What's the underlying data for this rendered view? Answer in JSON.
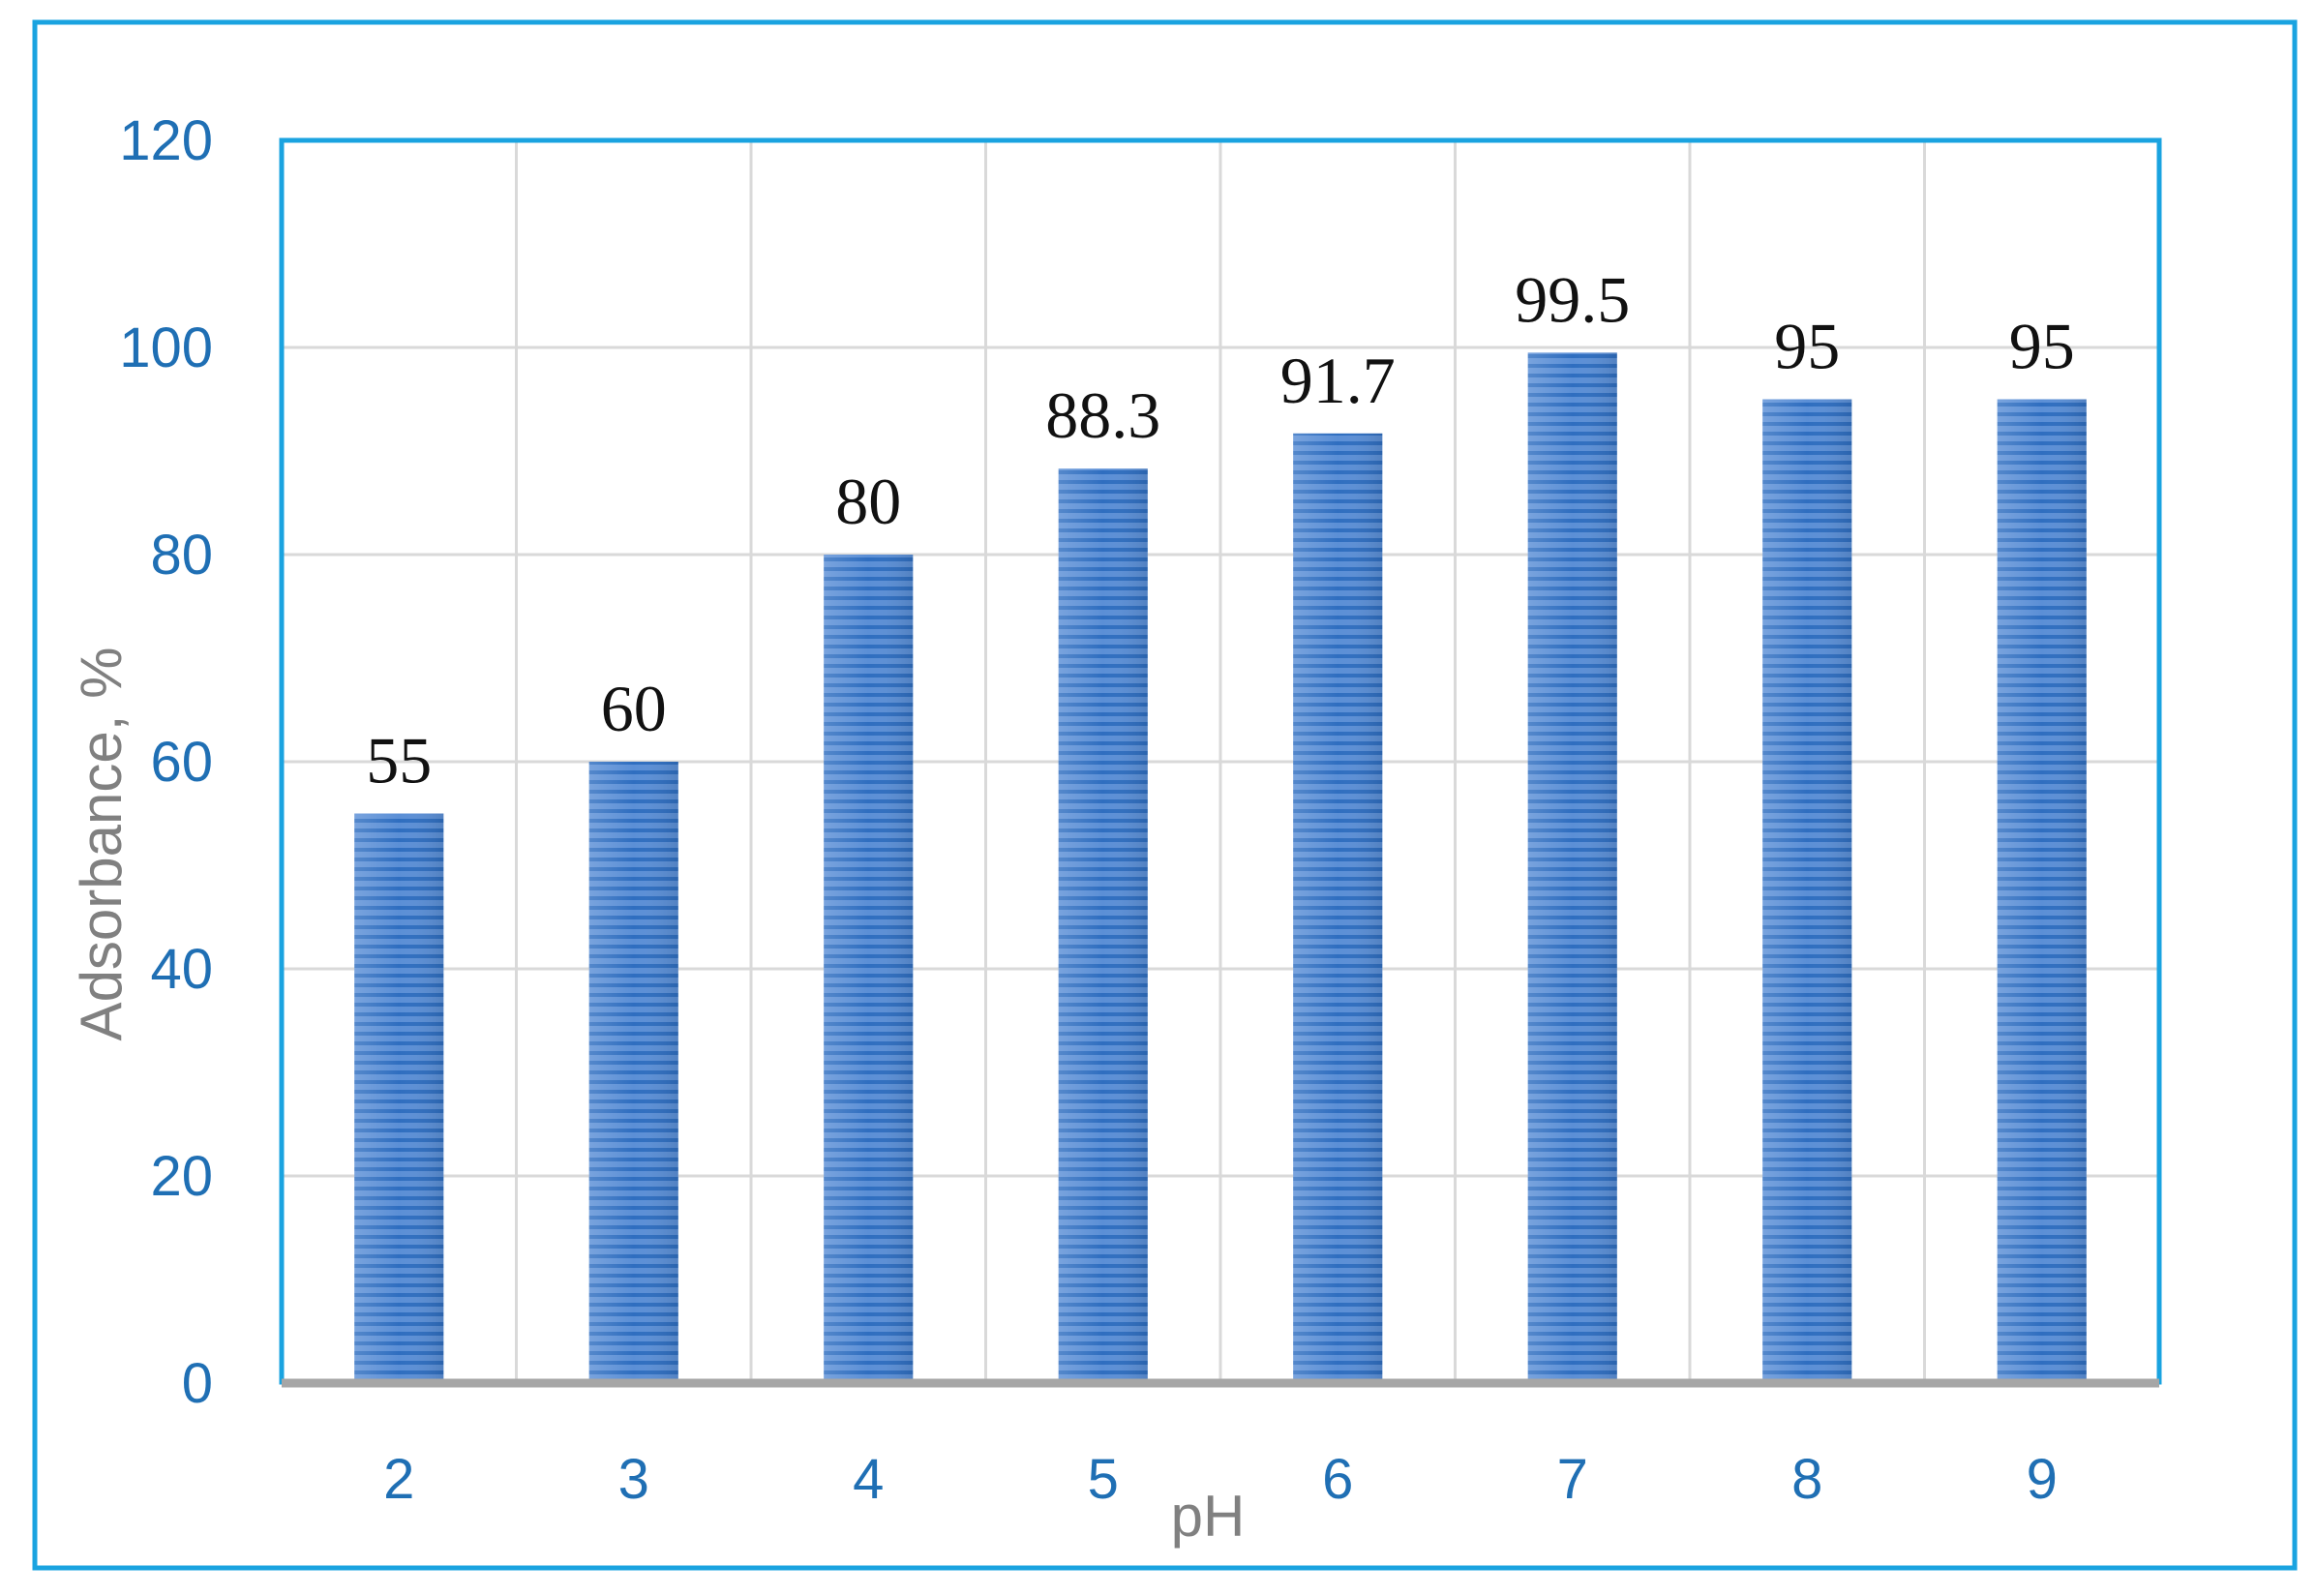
{
  "chart_data": {
    "type": "bar",
    "categories": [
      "2",
      "3",
      "4",
      "5",
      "6",
      "7",
      "8",
      "9"
    ],
    "values": [
      55,
      60,
      80,
      88.3,
      91.7,
      99.5,
      95,
      95
    ],
    "data_labels": [
      "55",
      "60",
      "80",
      "88.3",
      "91.7",
      "99.5",
      "95",
      "95"
    ],
    "xlabel": "pH",
    "ylabel": "Adsorbance, %",
    "ylim": [
      0,
      120
    ],
    "yticks": [
      0,
      20,
      40,
      60,
      80,
      100,
      120
    ],
    "grid": true,
    "legend": "none",
    "colors": {
      "bar_fill": "#5b8fd6",
      "bar_stripe": "#2f6ec0",
      "frame": "#1aa3e0",
      "tick_text": "#1f6fb4",
      "axis_title_text": "#808080",
      "grid": "#d9d9d9",
      "baseline": "#a6a6a6"
    }
  }
}
